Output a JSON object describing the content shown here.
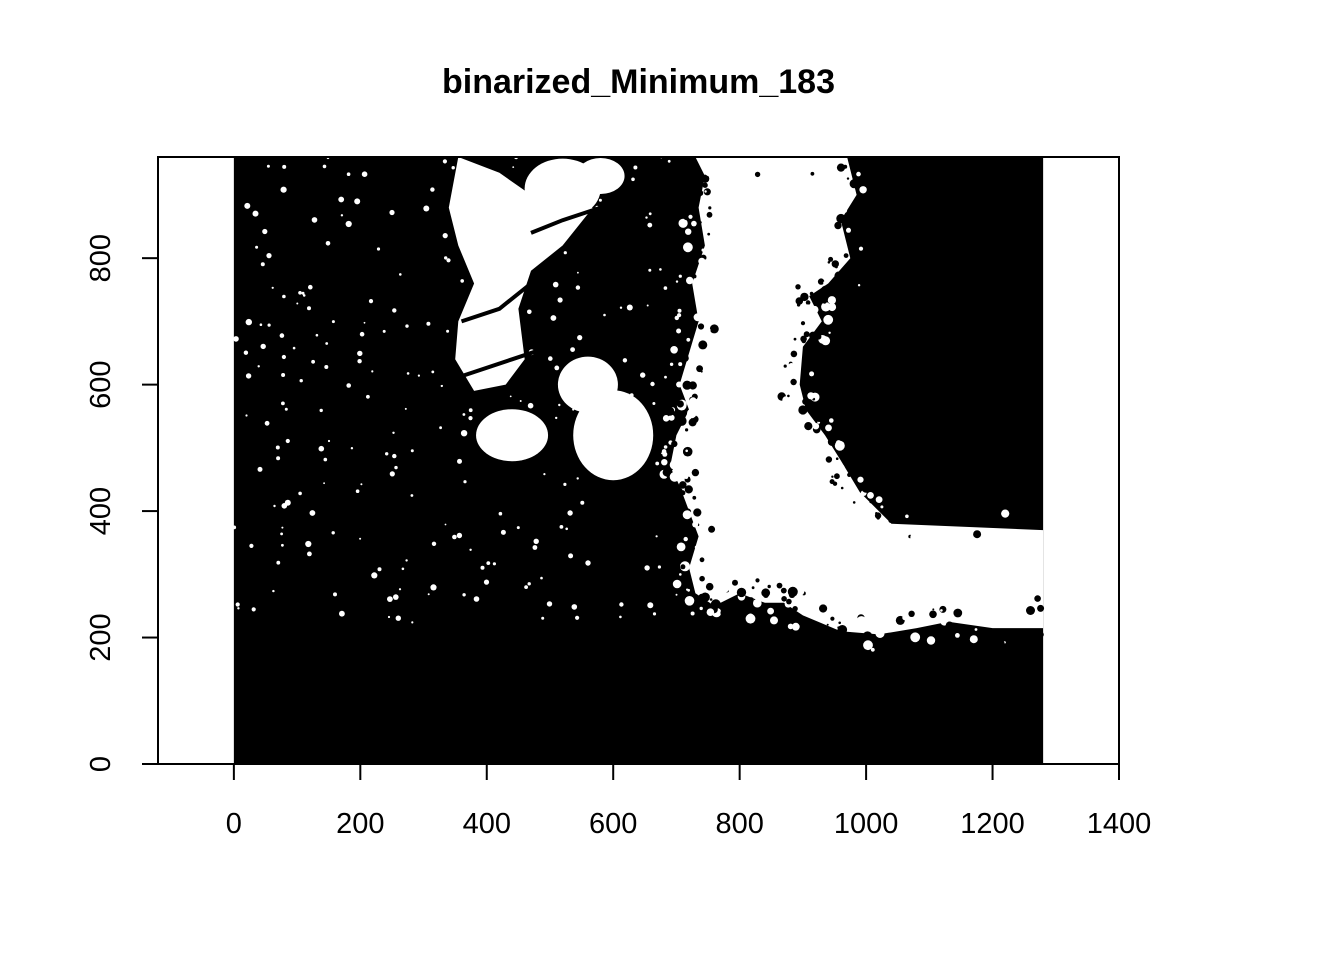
{
  "chart_data": {
    "type": "image",
    "title": "binarized_Minimum_183",
    "xlabel": "",
    "ylabel": "",
    "xlim": [
      -120,
      1400
    ],
    "ylim": [
      0,
      960
    ],
    "x_ticks": [
      0,
      200,
      400,
      600,
      800,
      1000,
      1200,
      1400
    ],
    "y_ticks": [
      0,
      200,
      400,
      600,
      800
    ],
    "image_extent": {
      "x": [
        0,
        1280
      ],
      "y": [
        0,
        960
      ]
    },
    "image_content": "binarized black-and-white photo of tree canopy against sky",
    "colors": {
      "foreground": "#000000",
      "background": "#ffffff"
    },
    "grid": false,
    "legend": "none"
  }
}
